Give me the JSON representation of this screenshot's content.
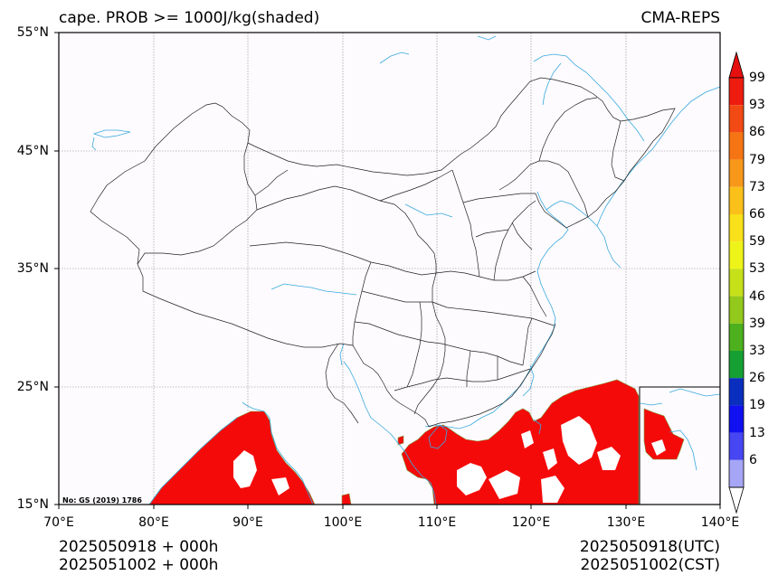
{
  "title_left": "cape. PROB >= 1000J/kg(shaded)",
  "title_right": "CMA-REPS",
  "note": "No: GS (2019) 1786",
  "y_ticks": [
    "55°N",
    "45°N",
    "35°N",
    "25°N",
    "15°N"
  ],
  "x_ticks": [
    "70°E",
    "80°E",
    "90°E",
    "100°E",
    "110°E",
    "120°E",
    "130°E",
    "140°E"
  ],
  "footer": {
    "left_line1": "2025050918  +  000h",
    "left_line2": "2025051002  +  000h",
    "right_line1": "2025050918(UTC)",
    "right_line2": "2025051002(CST)"
  },
  "colorbar": {
    "labels": [
      "99",
      "93",
      "86",
      "79",
      "73",
      "66",
      "59",
      "53",
      "46",
      "39",
      "33",
      "26",
      "19",
      "13",
      "6"
    ],
    "colors": [
      "#ee1c10",
      "#f24a14",
      "#f57515",
      "#f7981a",
      "#fbc01a",
      "#f8e01a",
      "#eef31a",
      "#c6e01a",
      "#93c81c",
      "#4db01e",
      "#16a034",
      "#0a2fbf",
      "#1010f0",
      "#4646f2",
      "#a6a6f6"
    ],
    "top_color": "#e60f0f",
    "bottom_color": "#ffffff"
  },
  "shade_color": "#f50a0a",
  "coast_color": "#39a9dc",
  "border_color": "#222222"
}
